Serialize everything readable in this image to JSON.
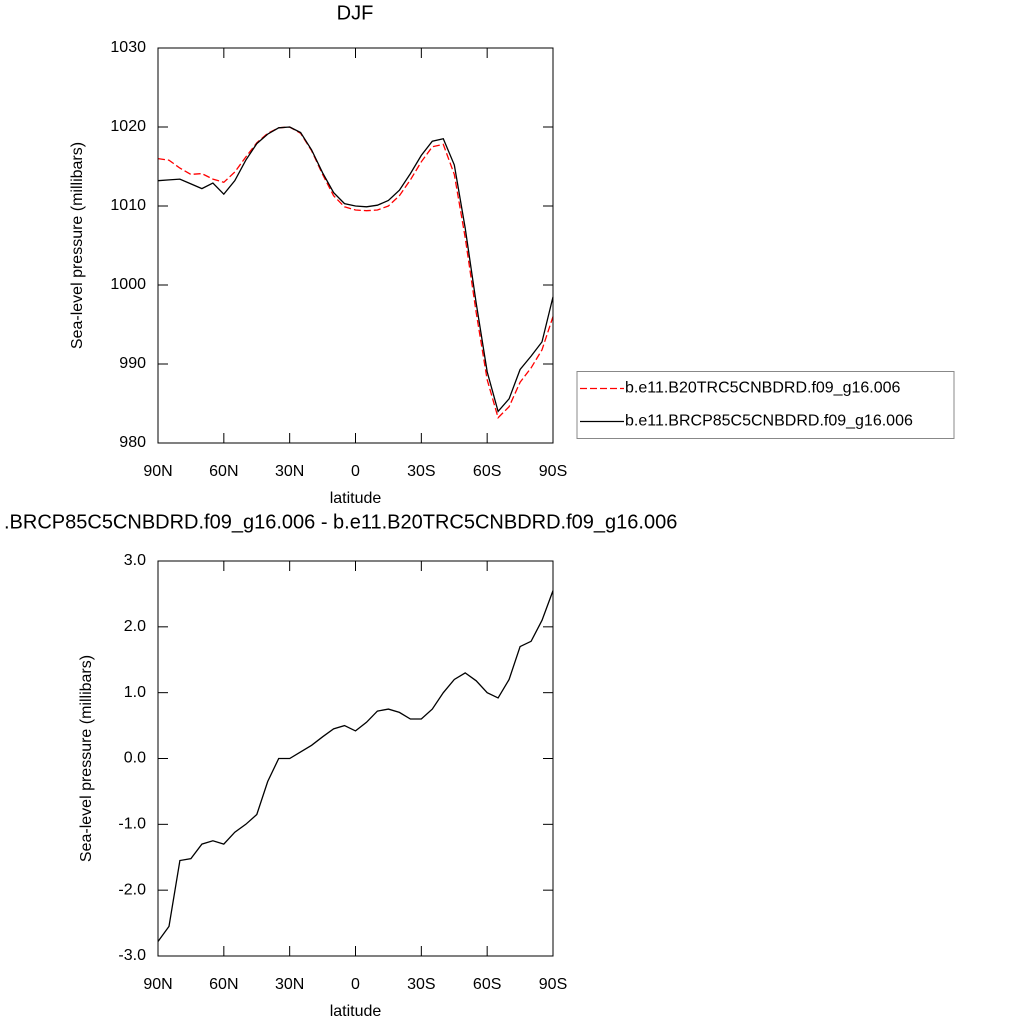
{
  "chart_data": [
    {
      "type": "line",
      "title": "DJF",
      "xlabel": "latitude",
      "ylabel": "Sea-level pressure (millibars)",
      "x": [
        90,
        85,
        80,
        75,
        70,
        65,
        60,
        55,
        50,
        45,
        40,
        35,
        30,
        25,
        20,
        15,
        10,
        5,
        0,
        -5,
        -10,
        -15,
        -20,
        -25,
        -30,
        -35,
        -40,
        -45,
        -50,
        -55,
        -60,
        -65,
        -70,
        -75,
        -80,
        -85,
        -90
      ],
      "series": [
        {
          "name": "b.e11.B20TRC5CNBDRD.f09_g16.006",
          "color": "#ff0000",
          "dash": true,
          "values": [
            1016.0,
            1015.8,
            1014.8,
            1014.0,
            1014.1,
            1013.4,
            1013.0,
            1014.3,
            1016.2,
            1018.0,
            1019.2,
            1019.9,
            1020.0,
            1019.2,
            1017.0,
            1014.0,
            1011.3,
            1009.9,
            1009.5,
            1009.4,
            1009.5,
            1010.0,
            1011.3,
            1013.3,
            1015.6,
            1017.5,
            1017.8,
            1014.0,
            1006.0,
            996.5,
            988.0,
            983.2,
            984.6,
            987.7,
            989.5,
            991.8,
            996.0
          ]
        },
        {
          "name": "b.e11.BRCP85C5CNBDRD.f09_g16.006",
          "color": "#000000",
          "dash": false,
          "values": [
            1013.2,
            1013.3,
            1013.4,
            1012.8,
            1012.2,
            1012.9,
            1011.5,
            1013.2,
            1015.8,
            1017.9,
            1019.1,
            1019.9,
            1020.0,
            1019.3,
            1017.1,
            1014.2,
            1011.7,
            1010.3,
            1010.0,
            1009.9,
            1010.1,
            1010.7,
            1012.0,
            1014.1,
            1016.4,
            1018.2,
            1018.5,
            1015.2,
            1007.2,
            997.7,
            989.0,
            984.0,
            985.6,
            989.3,
            991.0,
            992.8,
            998.5
          ]
        }
      ],
      "xlim": [
        90,
        -90
      ],
      "xticks": [
        {
          "value": 90,
          "label": "90N"
        },
        {
          "value": 60,
          "label": "60N"
        },
        {
          "value": 30,
          "label": "30N"
        },
        0,
        {
          "value": -30,
          "label": "30S"
        },
        {
          "value": -60,
          "label": "60S"
        },
        {
          "value": -90,
          "label": "90S"
        }
      ],
      "ylim": [
        980,
        1030
      ],
      "yticks": [
        980,
        990,
        1000,
        1010,
        1020,
        1030
      ],
      "legend": "right"
    },
    {
      "type": "line",
      "title": ".BRCP85C5CNBDRD.f09_g16.006 - b.e11.B20TRC5CNBDRD.f09_g16.006",
      "xlabel": "latitude",
      "ylabel": "Sea-level pressure (millibars)",
      "x": [
        90,
        85,
        80,
        75,
        70,
        65,
        60,
        55,
        50,
        45,
        40,
        35,
        30,
        25,
        20,
        15,
        10,
        5,
        0,
        -5,
        -10,
        -15,
        -20,
        -25,
        -30,
        -35,
        -40,
        -45,
        -50,
        -55,
        -60,
        -65,
        -70,
        -75,
        -80,
        -85,
        -90
      ],
      "series": [
        {
          "color": "#000000",
          "dash": false,
          "values": [
            -2.78,
            -2.55,
            -1.55,
            -1.52,
            -1.3,
            -1.25,
            -1.3,
            -1.12,
            -1.0,
            -0.85,
            -0.35,
            0.0,
            0.0,
            0.1,
            0.2,
            0.33,
            0.45,
            0.5,
            0.42,
            0.55,
            0.72,
            0.75,
            0.7,
            0.6,
            0.6,
            0.75,
            1.0,
            1.2,
            1.3,
            1.18,
            1.0,
            0.92,
            1.2,
            1.7,
            1.78,
            2.1,
            2.55
          ]
        }
      ],
      "xlim": [
        90,
        -90
      ],
      "xticks": [
        {
          "value": 90,
          "label": "90N"
        },
        {
          "value": 60,
          "label": "60N"
        },
        {
          "value": 30,
          "label": "30N"
        },
        0,
        {
          "value": -30,
          "label": "30S"
        },
        {
          "value": -60,
          "label": "60S"
        },
        {
          "value": -90,
          "label": "90S"
        }
      ],
      "ylim": [
        -3,
        3
      ],
      "yticks": [
        {
          "value": -3,
          "label": "-3.0"
        },
        {
          "value": -2,
          "label": "-2.0"
        },
        {
          "value": -1,
          "label": "-1.0"
        },
        {
          "value": 0,
          "label": "0.0"
        },
        {
          "value": 1,
          "label": "1.0"
        },
        {
          "value": 2,
          "label": "2.0"
        },
        {
          "value": 3,
          "label": "3.0"
        }
      ]
    }
  ]
}
